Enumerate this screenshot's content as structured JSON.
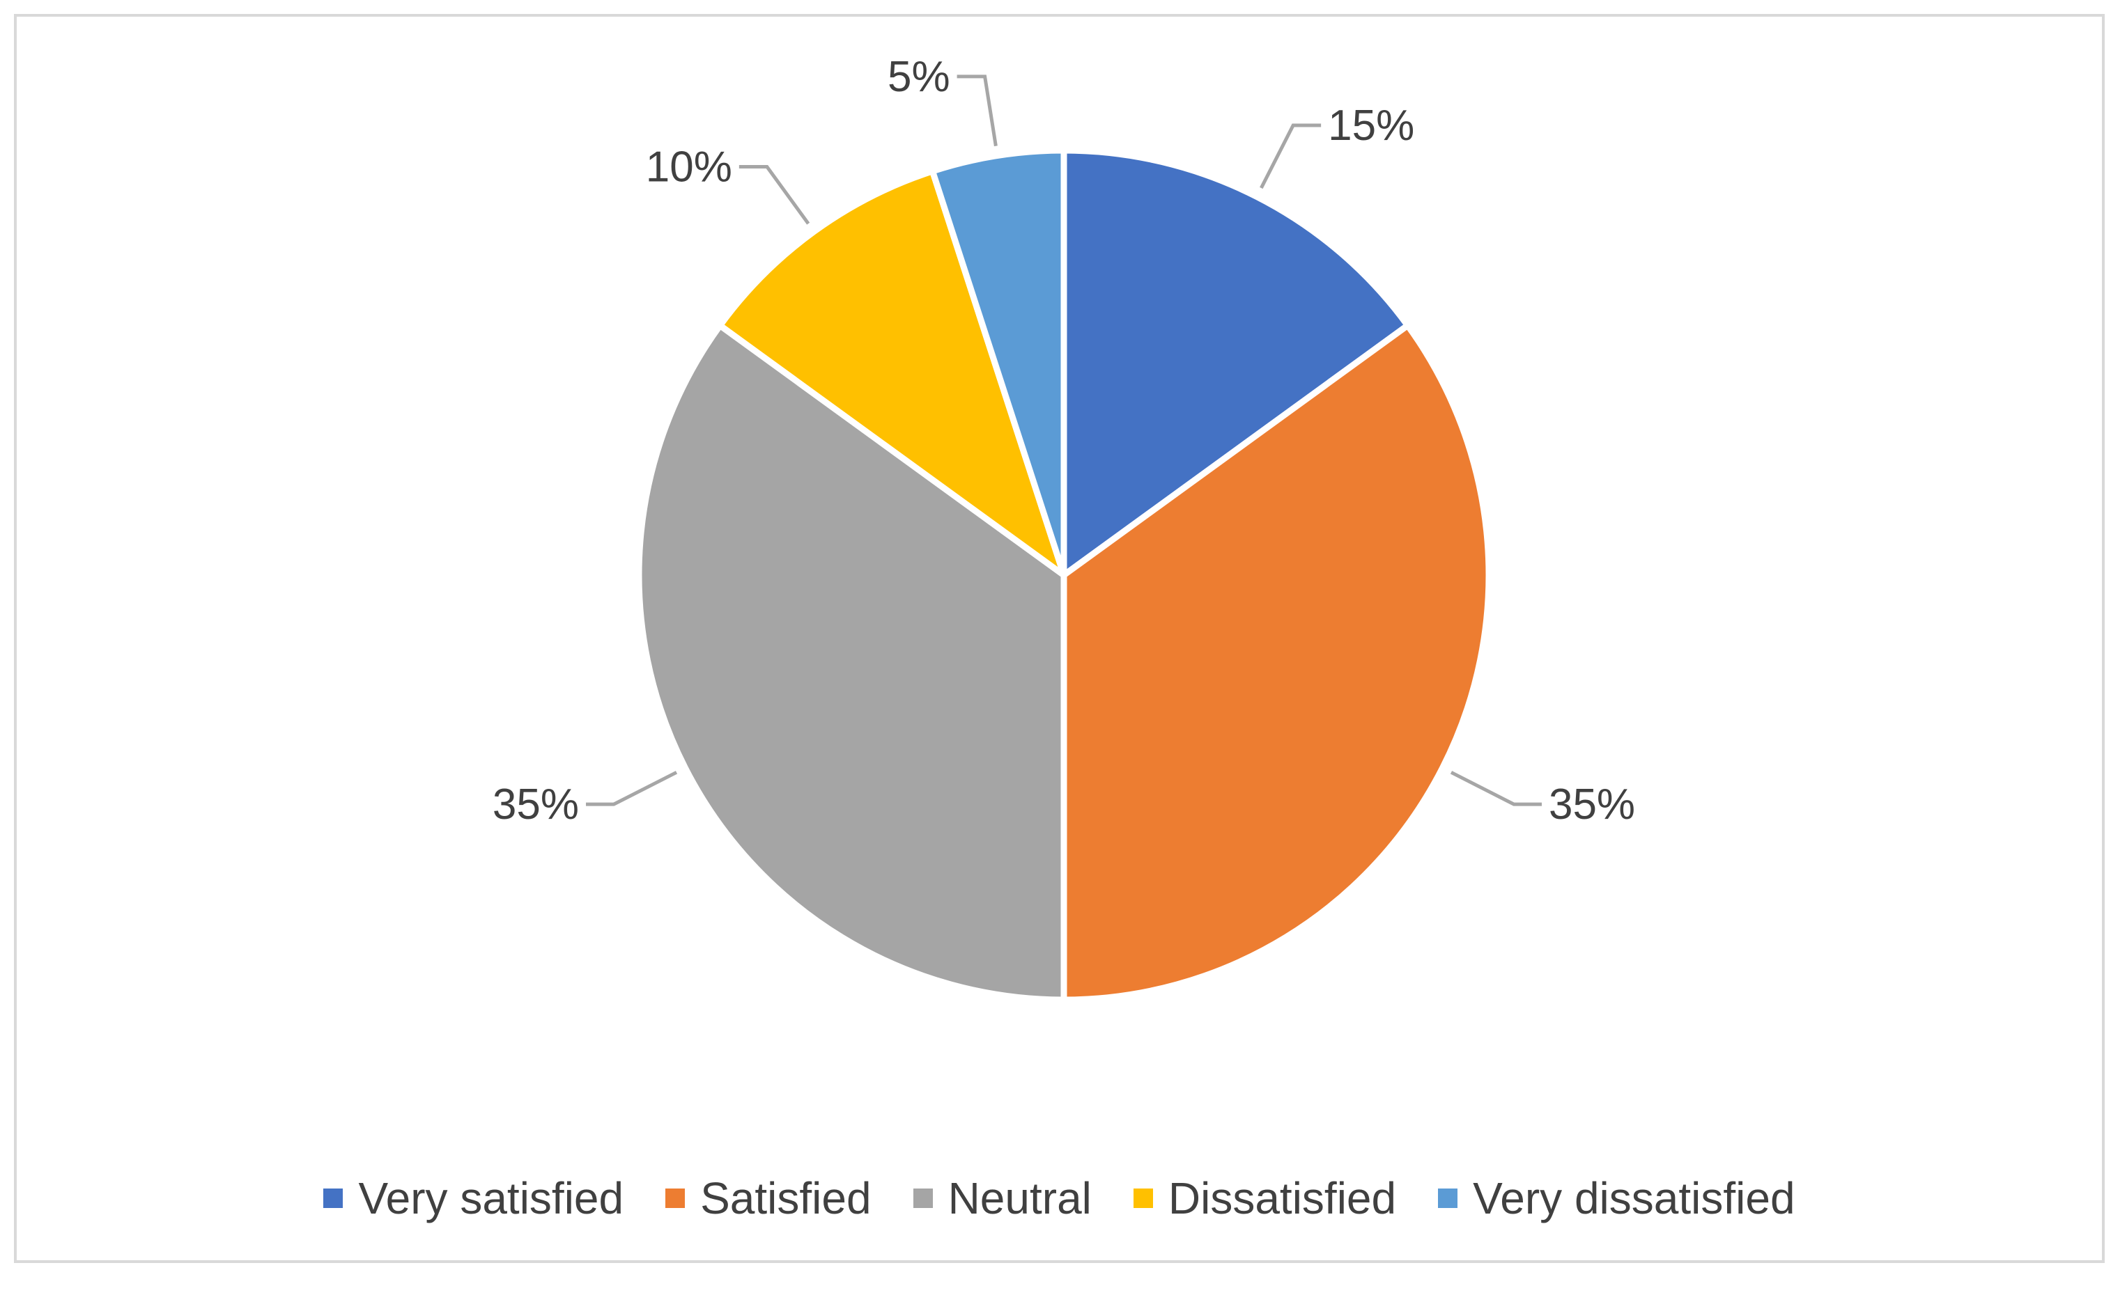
{
  "chart_data": {
    "type": "pie",
    "categories": [
      "Very satisfied",
      "Satisfied",
      "Neutral",
      "Dissatisfied",
      "Very dissatisfied"
    ],
    "values": [
      15,
      35,
      35,
      10,
      5
    ],
    "data_labels": [
      "15%",
      "35%",
      "35%",
      "10%",
      "5%"
    ],
    "colors": [
      "#4472c4",
      "#ed7d31",
      "#a5a5a5",
      "#ffc000",
      "#5b9bd5"
    ],
    "title": "",
    "legend_position": "bottom",
    "start_angle": "12 o'clock, clockwise"
  }
}
